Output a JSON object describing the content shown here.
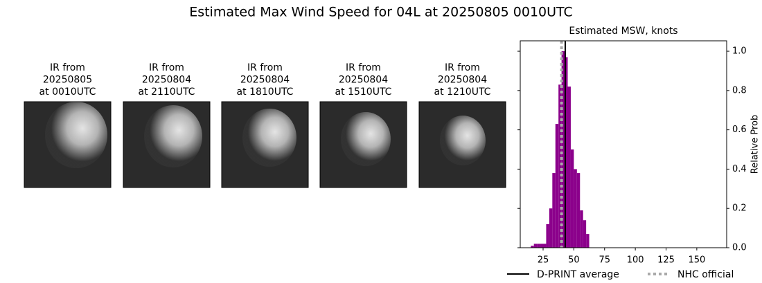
{
  "title": "Estimated Max Wind Speed for 04L at 20250805 0010UTC",
  "panels": [
    {
      "lines": [
        "IR from",
        "20250805",
        "at 0010UTC"
      ]
    },
    {
      "lines": [
        "IR from",
        "20250804",
        "at 2110UTC"
      ]
    },
    {
      "lines": [
        "IR from",
        "20250804",
        "at 1810UTC"
      ]
    },
    {
      "lines": [
        "IR from",
        "20250804",
        "at 1510UTC"
      ]
    },
    {
      "lines": [
        "IR from",
        "20250804",
        "at 1210UTC"
      ]
    }
  ],
  "chart_data": {
    "type": "histogram",
    "title": "Estimated MSW, knots",
    "ylabel": "Relative Prob",
    "bins": [
      15,
      17.5,
      20,
      22.5,
      25,
      27.5,
      30,
      32.5,
      35,
      37.5,
      40,
      42.5,
      45,
      47.5,
      50,
      52.5,
      55,
      57.5,
      60,
      62.5,
      65
    ],
    "values": [
      0.01,
      0.02,
      0.02,
      0.02,
      0.02,
      0.12,
      0.2,
      0.38,
      0.63,
      0.83,
      1.0,
      0.97,
      0.82,
      0.5,
      0.4,
      0.38,
      0.19,
      0.14,
      0.07,
      0.0
    ],
    "color": "#8b008b",
    "xlim": [
      6.4,
      174.3
    ],
    "ylim": [
      0,
      1.053
    ],
    "xticks": [
      25,
      50,
      75,
      100,
      125,
      150
    ],
    "yticks": [
      {
        "value": 0,
        "label": "0.0"
      },
      {
        "value": 0.2,
        "label": "0.2"
      },
      {
        "value": 0.4,
        "label": "0.4"
      },
      {
        "value": 0.6,
        "label": "0.6"
      },
      {
        "value": 0.8,
        "label": "0.8"
      },
      {
        "value": 1.0,
        "label": "1.0"
      }
    ],
    "lines": [
      {
        "name": "D-PRINT average",
        "value": 43,
        "color": "#000000",
        "style": "solid"
      },
      {
        "name": "NHC official",
        "value": 40,
        "color": "#aaaaaa",
        "style": "dotted"
      }
    ]
  }
}
